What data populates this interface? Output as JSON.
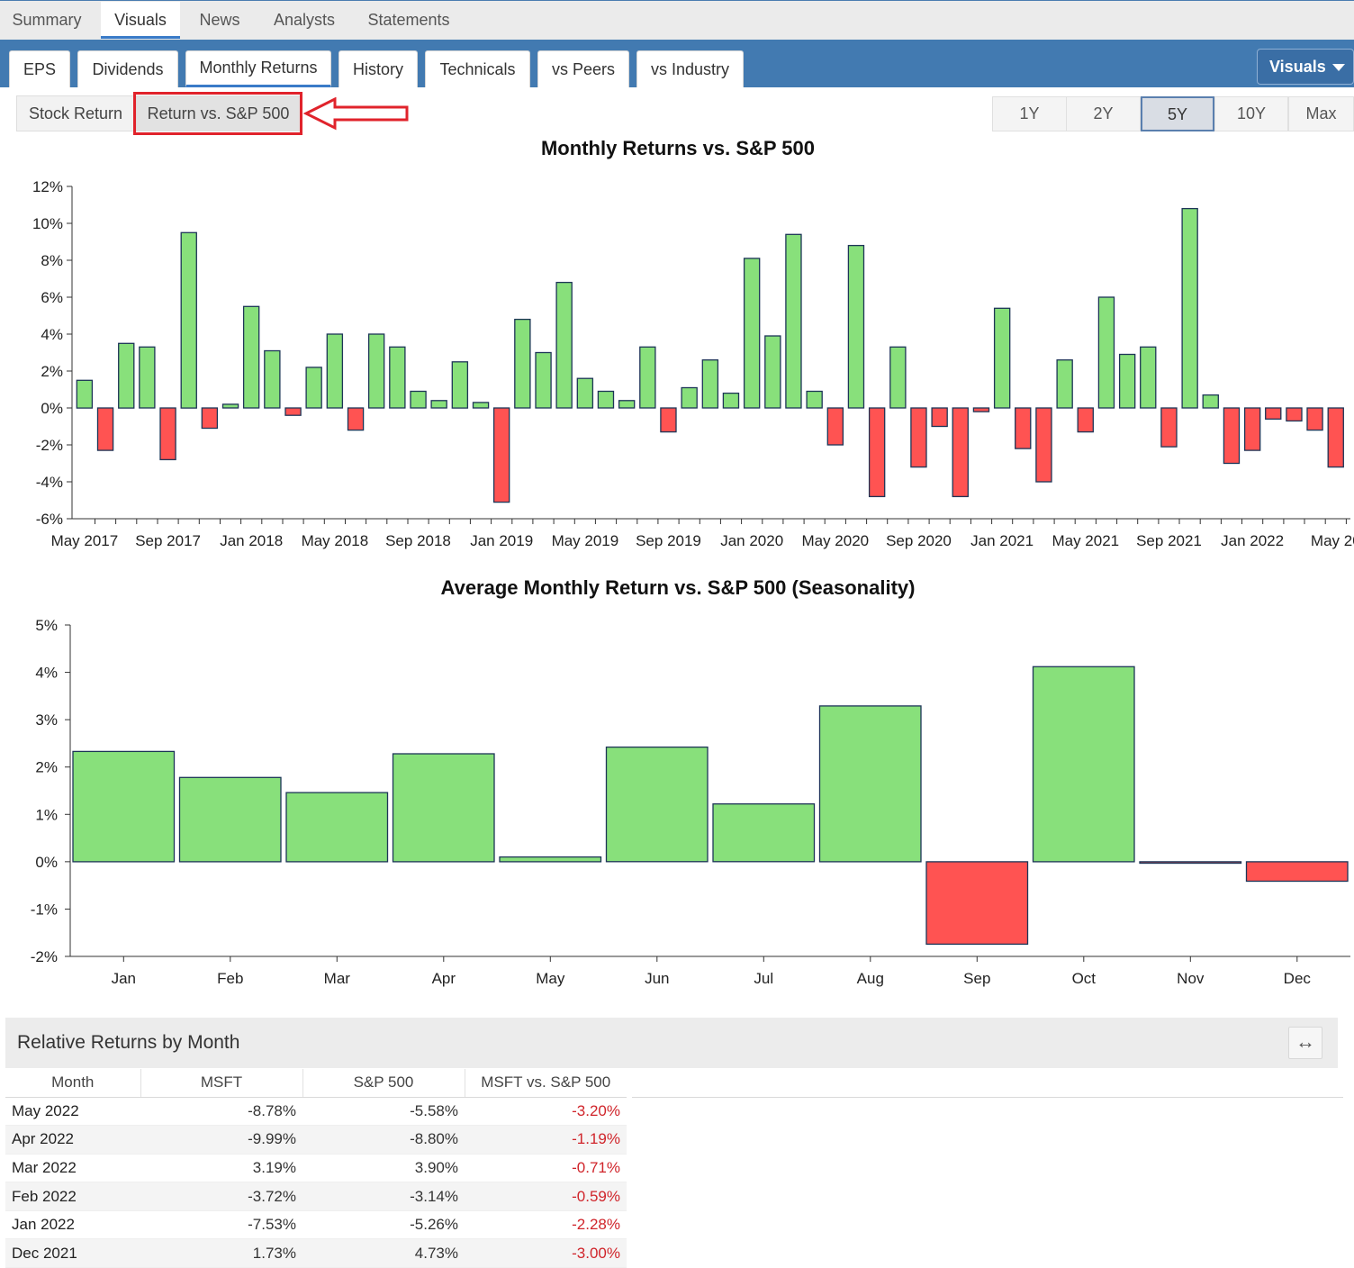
{
  "top_tabs": [
    "Summary",
    "Visuals",
    "News",
    "Analysts",
    "Statements"
  ],
  "sub_tabs": [
    "EPS",
    "Dividends",
    "Monthly Returns",
    "History",
    "Technicals",
    "vs Peers",
    "vs Industry"
  ],
  "visuals_menu": "Visuals",
  "mode_toggle": {
    "stock_return": "Stock Return",
    "vs_sp500": "Return vs. S&P 500"
  },
  "periods": [
    "1Y",
    "2Y",
    "5Y",
    "10Y",
    "Max"
  ],
  "colors": {
    "positive": "#88e07b",
    "negative": "#ff5352",
    "bar_stroke": "#1d3557",
    "accent": "#427ab1"
  },
  "chart_data": [
    {
      "type": "bar",
      "title": "Monthly Returns vs. S&P 500",
      "y_tick_labels": [
        "12%",
        "10%",
        "8%",
        "6%",
        "4%",
        "2%",
        "0%",
        "-2%",
        "-4%",
        "-6%"
      ],
      "ylim": [
        -6,
        12
      ],
      "x_tick_labels": [
        "May 2017",
        "Sep 2017",
        "Jan 2018",
        "May 2018",
        "Sep 2018",
        "Jan 2019",
        "May 2019",
        "Sep 2019",
        "Jan 2020",
        "May 2020",
        "Sep 2020",
        "Jan 2021",
        "May 2021",
        "Sep 2021",
        "Jan 2022",
        "May 20"
      ],
      "start": "May 2017",
      "values": [
        1.5,
        -2.3,
        3.5,
        3.3,
        -2.8,
        9.5,
        -1.1,
        0.2,
        5.5,
        3.1,
        -0.4,
        2.2,
        4.0,
        -1.2,
        4.0,
        3.3,
        0.9,
        0.4,
        2.5,
        0.3,
        -5.1,
        4.8,
        3.0,
        6.8,
        1.6,
        0.9,
        0.4,
        3.3,
        -1.3,
        1.1,
        2.6,
        0.8,
        8.1,
        3.9,
        9.4,
        0.9,
        -2.0,
        8.8,
        -4.8,
        3.3,
        -3.2,
        -1.0,
        -4.8,
        -0.2,
        5.4,
        -2.2,
        -4.0,
        2.6,
        -1.3,
        6.0,
        2.9,
        3.3,
        -2.1,
        10.8,
        0.7,
        -3.0,
        -2.3,
        -0.6,
        -0.7,
        -1.2,
        -3.2
      ]
    },
    {
      "type": "bar",
      "title": "Average Monthly Return vs. S&P 500 (Seasonality)",
      "y_tick_labels": [
        "5%",
        "4%",
        "3%",
        "2%",
        "1%",
        "0%",
        "-1%",
        "-2%"
      ],
      "ylim": [
        -2,
        5
      ],
      "categories": [
        "Jan",
        "Feb",
        "Mar",
        "Apr",
        "May",
        "Jun",
        "Jul",
        "Aug",
        "Sep",
        "Oct",
        "Nov",
        "Dec"
      ],
      "values": [
        2.33,
        1.78,
        1.46,
        2.28,
        0.1,
        2.42,
        1.22,
        3.29,
        -1.74,
        4.12,
        -0.03,
        -0.41
      ]
    }
  ],
  "relative_returns": {
    "title": "Relative Returns by Month",
    "expand_icon": "↔",
    "columns": [
      "Month",
      "MSFT",
      "S&P 500",
      "MSFT vs. S&P 500"
    ],
    "rows": [
      {
        "month": "May 2022",
        "msft": "-8.78%",
        "sp": "-5.58%",
        "diff": "-3.20%"
      },
      {
        "month": "Apr 2022",
        "msft": "-9.99%",
        "sp": "-8.80%",
        "diff": "-1.19%"
      },
      {
        "month": "Mar 2022",
        "msft": "3.19%",
        "sp": "3.90%",
        "diff": "-0.71%"
      },
      {
        "month": "Feb 2022",
        "msft": "-3.72%",
        "sp": "-3.14%",
        "diff": "-0.59%"
      },
      {
        "month": "Jan 2022",
        "msft": "-7.53%",
        "sp": "-5.26%",
        "diff": "-2.28%"
      },
      {
        "month": "Dec 2021",
        "msft": "1.73%",
        "sp": "4.73%",
        "diff": "-3.00%"
      }
    ]
  }
}
